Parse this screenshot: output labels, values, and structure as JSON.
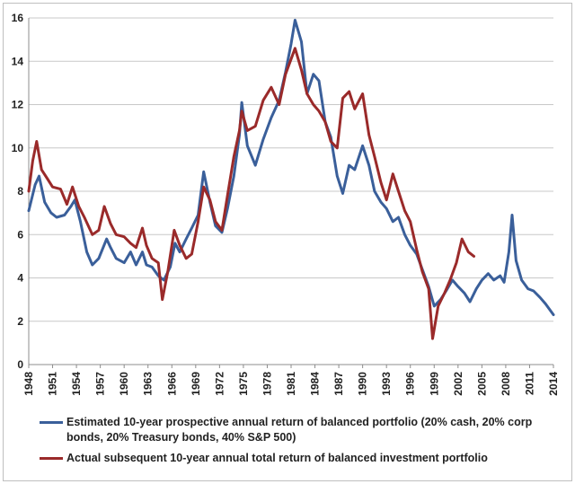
{
  "chart_data": {
    "type": "line",
    "ylim": [
      0,
      16
    ],
    "yticks": [
      0,
      2,
      4,
      6,
      8,
      10,
      12,
      14,
      16
    ],
    "xlim": [
      1948,
      2014
    ],
    "xticks": [
      "1948",
      "1951",
      "1954",
      "1957",
      "1960",
      "1963",
      "1966",
      "1969",
      "1972",
      "1975",
      "1978",
      "1981",
      "1984",
      "1987",
      "1990",
      "1993",
      "1996",
      "1999",
      "2002",
      "2005",
      "2008",
      "2011",
      "2014"
    ],
    "grid": "horizontal",
    "legend_position": "bottom",
    "series": [
      {
        "name": "Estimated 10-year prospective annual return of balanced portfolio (20% cash, 20% corp bonds, 20% Treasury bonds, 40% S&P 500)",
        "color": "#3a5f9a",
        "points": [
          [
            1948,
            7.1
          ],
          [
            1948.8,
            8.3
          ],
          [
            1949.3,
            8.7
          ],
          [
            1950,
            7.5
          ],
          [
            1950.8,
            7.0
          ],
          [
            1951.5,
            6.8
          ],
          [
            1952.5,
            6.9
          ],
          [
            1953.3,
            7.3
          ],
          [
            1953.8,
            7.6
          ],
          [
            1954.5,
            6.6
          ],
          [
            1955.3,
            5.2
          ],
          [
            1956,
            4.6
          ],
          [
            1956.8,
            4.9
          ],
          [
            1957.8,
            5.8
          ],
          [
            1958.3,
            5.4
          ],
          [
            1959,
            4.9
          ],
          [
            1960,
            4.7
          ],
          [
            1960.8,
            5.2
          ],
          [
            1961.5,
            4.6
          ],
          [
            1962.3,
            5.2
          ],
          [
            1962.8,
            4.6
          ],
          [
            1963.5,
            4.5
          ],
          [
            1964.3,
            4.1
          ],
          [
            1965,
            3.9
          ],
          [
            1965.8,
            4.5
          ],
          [
            1966.4,
            5.6
          ],
          [
            1967,
            5.2
          ],
          [
            1967.8,
            5.8
          ],
          [
            1968.5,
            6.3
          ],
          [
            1969.3,
            6.9
          ],
          [
            1970,
            8.9
          ],
          [
            1970.8,
            7.5
          ],
          [
            1971.5,
            6.4
          ],
          [
            1972.3,
            6.1
          ],
          [
            1973,
            7.2
          ],
          [
            1973.8,
            8.7
          ],
          [
            1974.5,
            10.6
          ],
          [
            1974.8,
            12.1
          ],
          [
            1975.5,
            10.1
          ],
          [
            1976.5,
            9.2
          ],
          [
            1977.5,
            10.4
          ],
          [
            1978.5,
            11.4
          ],
          [
            1979.5,
            12.2
          ],
          [
            1980.3,
            13.5
          ],
          [
            1981,
            14.8
          ],
          [
            1981.5,
            15.9
          ],
          [
            1982.3,
            14.9
          ],
          [
            1983,
            12.5
          ],
          [
            1983.8,
            13.4
          ],
          [
            1984.5,
            13.1
          ],
          [
            1985.3,
            11.2
          ],
          [
            1986,
            10.5
          ],
          [
            1986.8,
            8.7
          ],
          [
            1987.5,
            7.9
          ],
          [
            1988.3,
            9.2
          ],
          [
            1989,
            9.0
          ],
          [
            1990,
            10.1
          ],
          [
            1990.8,
            9.2
          ],
          [
            1991.5,
            8.0
          ],
          [
            1992.3,
            7.5
          ],
          [
            1993,
            7.2
          ],
          [
            1993.8,
            6.6
          ],
          [
            1994.5,
            6.8
          ],
          [
            1995.3,
            6.0
          ],
          [
            1996,
            5.5
          ],
          [
            1996.8,
            5.1
          ],
          [
            1997.5,
            4.4
          ],
          [
            1998.3,
            3.6
          ],
          [
            1999,
            2.7
          ],
          [
            1999.8,
            3.0
          ],
          [
            2000.5,
            3.4
          ],
          [
            2001.3,
            3.9
          ],
          [
            2002,
            3.6
          ],
          [
            2002.8,
            3.3
          ],
          [
            2003.5,
            2.9
          ],
          [
            2004.3,
            3.5
          ],
          [
            2005,
            3.9
          ],
          [
            2005.8,
            4.2
          ],
          [
            2006.5,
            3.9
          ],
          [
            2007.3,
            4.1
          ],
          [
            2007.8,
            3.8
          ],
          [
            2008.4,
            5.2
          ],
          [
            2008.8,
            6.9
          ],
          [
            2009.3,
            4.8
          ],
          [
            2010,
            3.9
          ],
          [
            2010.8,
            3.5
          ],
          [
            2011.5,
            3.4
          ],
          [
            2012.3,
            3.1
          ],
          [
            2013,
            2.8
          ],
          [
            2014,
            2.3
          ]
        ]
      },
      {
        "name": "Actual subsequent 10-year annual total return of balanced investment portfolio",
        "color": "#9a2a2a",
        "points": [
          [
            1948,
            8.0
          ],
          [
            1948.5,
            9.4
          ],
          [
            1949,
            10.3
          ],
          [
            1949.6,
            9.0
          ],
          [
            1950.3,
            8.6
          ],
          [
            1951,
            8.2
          ],
          [
            1952,
            8.1
          ],
          [
            1952.8,
            7.4
          ],
          [
            1953.5,
            8.2
          ],
          [
            1954.3,
            7.3
          ],
          [
            1955,
            6.8
          ],
          [
            1956,
            6.0
          ],
          [
            1956.8,
            6.2
          ],
          [
            1957.5,
            7.3
          ],
          [
            1958.3,
            6.5
          ],
          [
            1959,
            6.0
          ],
          [
            1960,
            5.9
          ],
          [
            1960.8,
            5.6
          ],
          [
            1961.5,
            5.4
          ],
          [
            1962.3,
            6.3
          ],
          [
            1962.8,
            5.5
          ],
          [
            1963.5,
            4.9
          ],
          [
            1964.3,
            4.7
          ],
          [
            1964.8,
            3.0
          ],
          [
            1965.5,
            4.3
          ],
          [
            1966.3,
            6.2
          ],
          [
            1967,
            5.5
          ],
          [
            1967.8,
            4.9
          ],
          [
            1968.5,
            5.1
          ],
          [
            1969.3,
            6.6
          ],
          [
            1970,
            8.2
          ],
          [
            1970.8,
            7.6
          ],
          [
            1971.5,
            6.6
          ],
          [
            1972.3,
            6.2
          ],
          [
            1973,
            7.8
          ],
          [
            1973.8,
            9.6
          ],
          [
            1974.5,
            10.8
          ],
          [
            1974.8,
            11.7
          ],
          [
            1975.5,
            10.8
          ],
          [
            1976.5,
            11.0
          ],
          [
            1977.5,
            12.2
          ],
          [
            1978.5,
            12.8
          ],
          [
            1979.5,
            12.0
          ],
          [
            1980.3,
            13.4
          ],
          [
            1981,
            14.1
          ],
          [
            1981.5,
            14.6
          ],
          [
            1982.3,
            13.6
          ],
          [
            1983,
            12.5
          ],
          [
            1983.8,
            12.0
          ],
          [
            1984.5,
            11.7
          ],
          [
            1985.3,
            11.2
          ],
          [
            1986,
            10.3
          ],
          [
            1986.8,
            10.0
          ],
          [
            1987.5,
            12.3
          ],
          [
            1988.3,
            12.6
          ],
          [
            1989,
            11.8
          ],
          [
            1990,
            12.5
          ],
          [
            1990.8,
            10.6
          ],
          [
            1991.5,
            9.6
          ],
          [
            1992.3,
            8.4
          ],
          [
            1993,
            7.6
          ],
          [
            1993.8,
            8.8
          ],
          [
            1994.5,
            8.0
          ],
          [
            1995.3,
            7.1
          ],
          [
            1996,
            6.6
          ],
          [
            1996.8,
            5.3
          ],
          [
            1997.5,
            4.3
          ],
          [
            1998.3,
            3.5
          ],
          [
            1998.8,
            1.2
          ],
          [
            1999.5,
            2.7
          ],
          [
            2000.3,
            3.3
          ],
          [
            2001,
            3.9
          ],
          [
            2001.8,
            4.7
          ],
          [
            2002.5,
            5.8
          ],
          [
            2003.3,
            5.2
          ],
          [
            2004,
            5.0
          ]
        ]
      }
    ]
  }
}
